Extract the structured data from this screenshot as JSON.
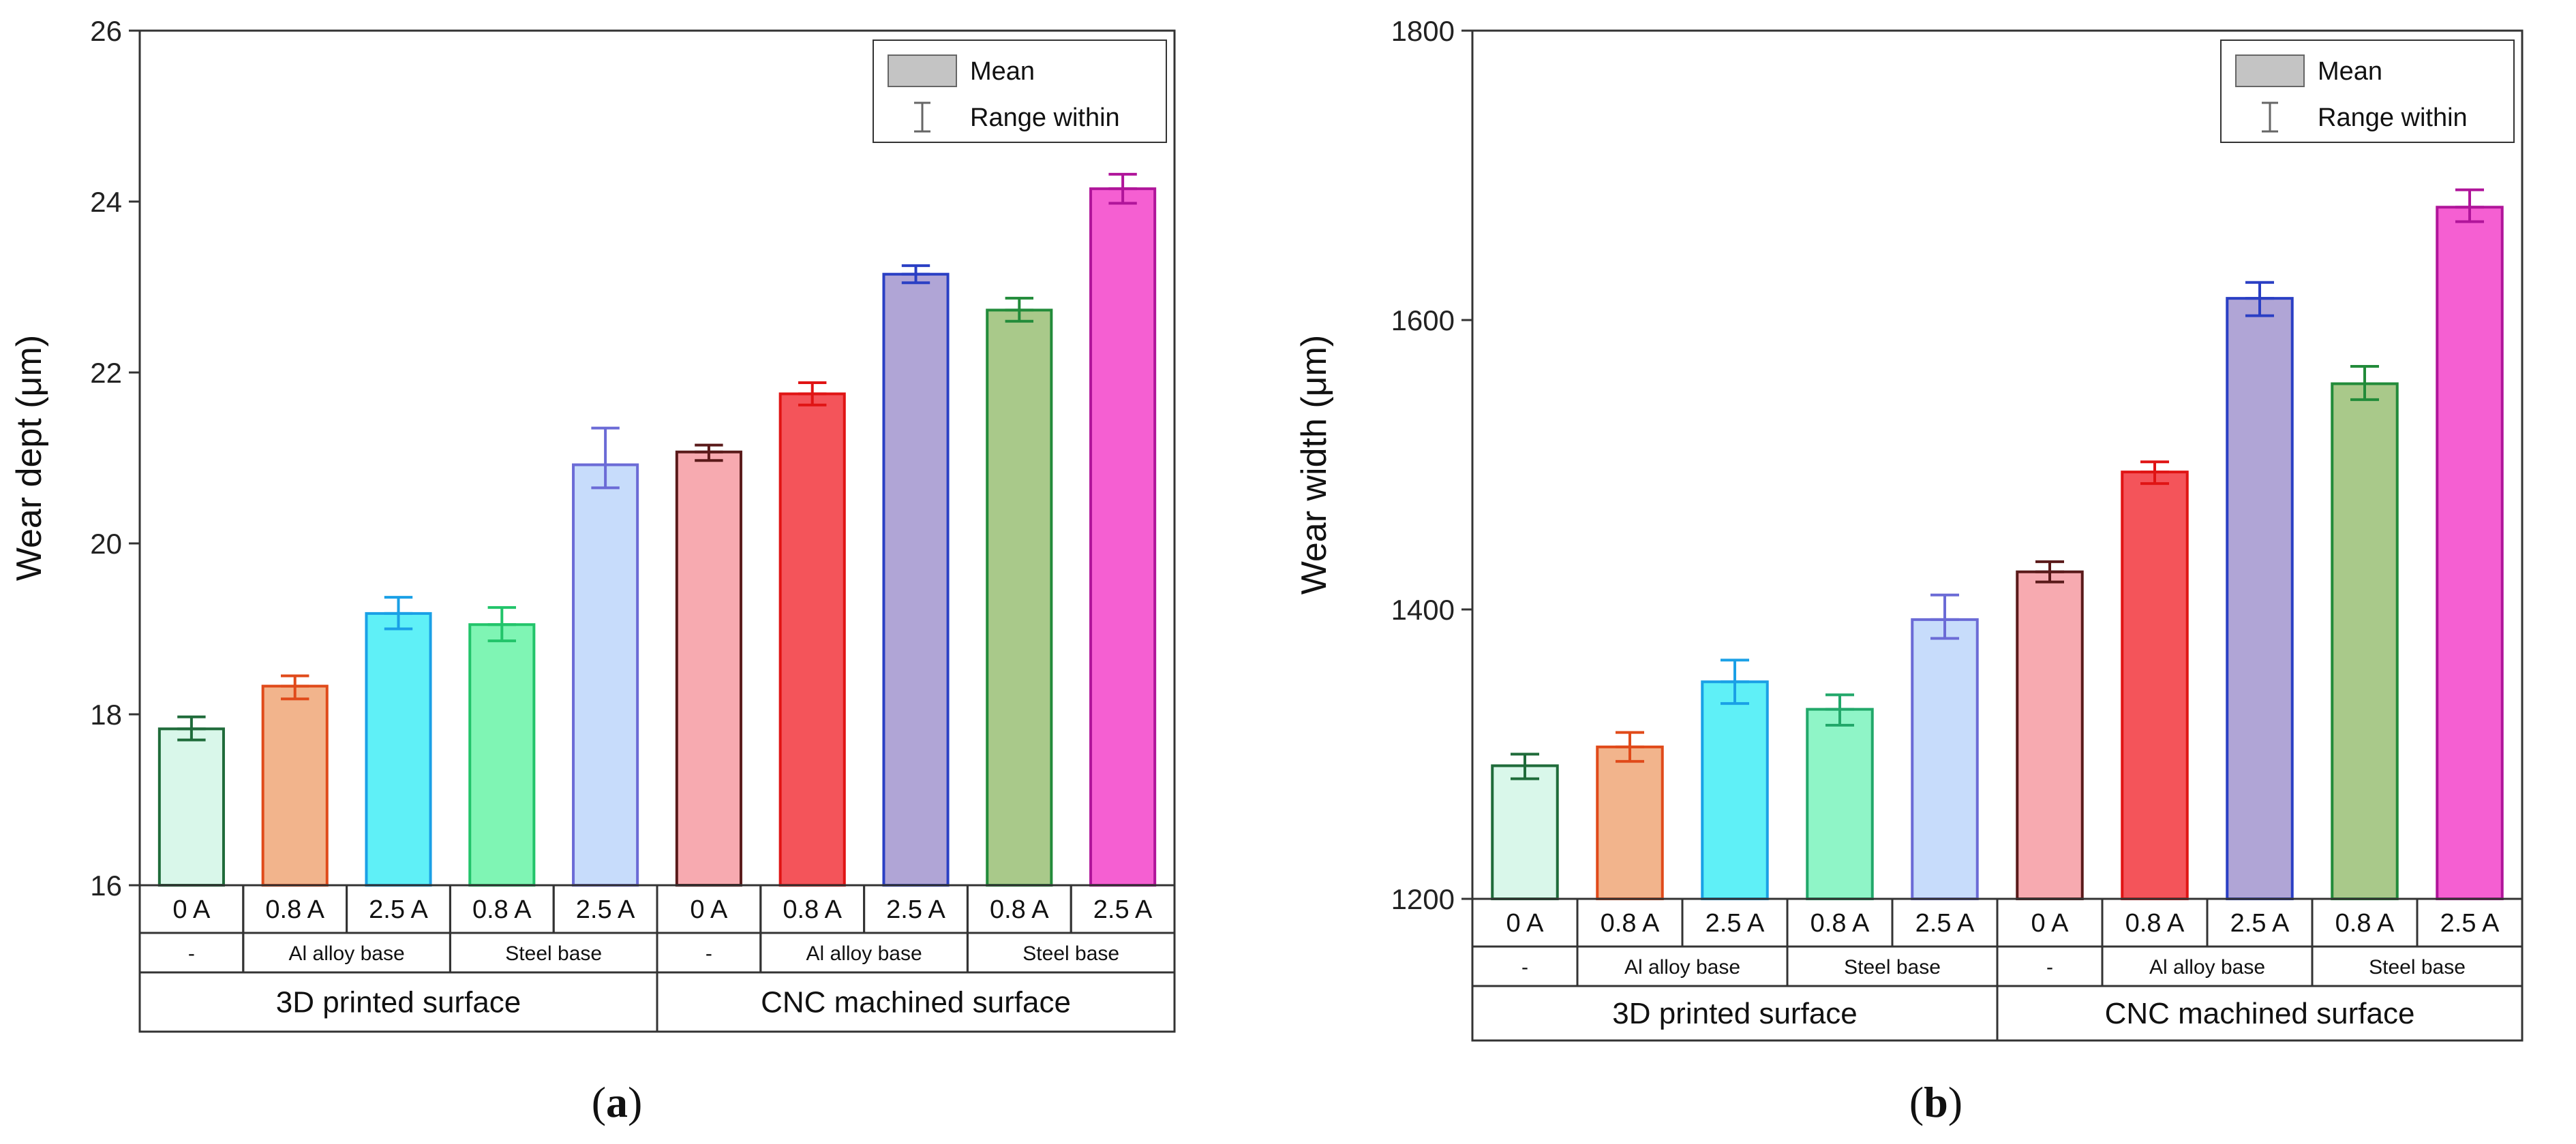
{
  "chart_data": [
    {
      "type": "bar",
      "caption": "(a)",
      "caption_letter": "a",
      "ylabel": "Wear dept (μm)",
      "ylim": [
        16,
        26
      ],
      "yticks": [
        "16",
        "18",
        "20",
        "22",
        "24",
        "26"
      ],
      "ytick_values": [
        16,
        18,
        20,
        22,
        24,
        26
      ],
      "legend": {
        "mean": "Mean",
        "range": "Range within",
        "placement": "top-right"
      },
      "groups": [
        {
          "surface": "3D printed surface",
          "bases": [
            "-",
            "Al alloy base",
            "Steel base"
          ],
          "bars": [
            {
              "current": "0 A",
              "base": "-",
              "value": 17.83,
              "err_low": 17.7,
              "err_high": 17.97,
              "fill": "#d9f7ea",
              "stroke": "#1f6b3a"
            },
            {
              "current": "0.8 A",
              "base": "Al alloy base",
              "value": 18.33,
              "err_low": 18.18,
              "err_high": 18.45,
              "fill": "#f2b48c",
              "stroke": "#e04a1a"
            },
            {
              "current": "2.5 A",
              "base": "Al alloy base",
              "value": 19.18,
              "err_low": 19.0,
              "err_high": 19.37,
              "fill": "#5ff0f7",
              "stroke": "#1aa0e6"
            },
            {
              "current": "0.8 A",
              "base": "Steel base",
              "value": 19.05,
              "err_low": 18.86,
              "err_high": 19.25,
              "fill": "#7ff5b4",
              "stroke": "#22c46a"
            },
            {
              "current": "2.5 A",
              "base": "Steel base",
              "value": 20.92,
              "err_low": 20.65,
              "err_high": 21.35,
              "fill": "#c7dcfb",
              "stroke": "#6b6bd6"
            }
          ]
        },
        {
          "surface": "CNC machined surface",
          "bases": [
            "-",
            "Al alloy base",
            "Steel base"
          ],
          "bars": [
            {
              "current": "0 A",
              "base": "-",
              "value": 21.07,
              "err_low": 20.97,
              "err_high": 21.15,
              "fill": "#f7aab0",
              "stroke": "#5a1a1a"
            },
            {
              "current": "0.8 A",
              "base": "Al alloy base",
              "value": 21.75,
              "err_low": 21.62,
              "err_high": 21.88,
              "fill": "#f4545a",
              "stroke": "#e01414"
            },
            {
              "current": "2.5 A",
              "base": "Al alloy base",
              "value": 23.15,
              "err_low": 23.05,
              "err_high": 23.25,
              "fill": "#b0a5d6",
              "stroke": "#2a3fc4"
            },
            {
              "current": "0.8 A",
              "base": "Steel base",
              "value": 22.73,
              "err_low": 22.6,
              "err_high": 22.87,
              "fill": "#a9c98a",
              "stroke": "#228b3a"
            },
            {
              "current": "2.5 A",
              "base": "Steel base",
              "value": 24.15,
              "err_low": 23.98,
              "err_high": 24.32,
              "fill": "#f55fd2",
              "stroke": "#b0159a"
            }
          ]
        }
      ]
    },
    {
      "type": "bar",
      "caption": "(b)",
      "caption_letter": "b",
      "ylabel": "Wear width (μm)",
      "ylim": [
        1200,
        1800
      ],
      "yticks": [
        "1200",
        "1400",
        "1600",
        "1800"
      ],
      "ytick_values": [
        1200,
        1400,
        1600,
        1800
      ],
      "legend": {
        "mean": "Mean",
        "range": "Range within",
        "placement": "top-right"
      },
      "groups": [
        {
          "surface": "3D printed surface",
          "bases": [
            "-",
            "Al alloy base",
            "Steel base"
          ],
          "bars": [
            {
              "current": "0 A",
              "base": "-",
              "value": 1292,
              "err_low": 1283,
              "err_high": 1300,
              "fill": "#d9f7ea",
              "stroke": "#1f6b3a"
            },
            {
              "current": "0.8 A",
              "base": "Al alloy base",
              "value": 1305,
              "err_low": 1295,
              "err_high": 1315,
              "fill": "#f2b48c",
              "stroke": "#e04a1a"
            },
            {
              "current": "2.5 A",
              "base": "Al alloy base",
              "value": 1350,
              "err_low": 1335,
              "err_high": 1365,
              "fill": "#5ff0f7",
              "stroke": "#1aa0e6"
            },
            {
              "current": "0.8 A",
              "base": "Steel base",
              "value": 1331,
              "err_low": 1320,
              "err_high": 1341,
              "fill": "#8ff5c7",
              "stroke": "#22a86a"
            },
            {
              "current": "2.5 A",
              "base": "Steel base",
              "value": 1393,
              "err_low": 1380,
              "err_high": 1410,
              "fill": "#c7dcfb",
              "stroke": "#6b6bd6"
            }
          ]
        },
        {
          "surface": "CNC machined surface",
          "bases": [
            "-",
            "Al alloy base",
            "Steel base"
          ],
          "bars": [
            {
              "current": "0 A",
              "base": "-",
              "value": 1426,
              "err_low": 1419,
              "err_high": 1433,
              "fill": "#f7aab0",
              "stroke": "#5a1a1a"
            },
            {
              "current": "0.8 A",
              "base": "Al alloy base",
              "value": 1495,
              "err_low": 1487,
              "err_high": 1502,
              "fill": "#f4545a",
              "stroke": "#e01414"
            },
            {
              "current": "2.5 A",
              "base": "Al alloy base",
              "value": 1615,
              "err_low": 1603,
              "err_high": 1626,
              "fill": "#b0a5d6",
              "stroke": "#2a3fc4"
            },
            {
              "current": "0.8 A",
              "base": "Steel base",
              "value": 1556,
              "err_low": 1545,
              "err_high": 1568,
              "fill": "#a9c98a",
              "stroke": "#228b3a"
            },
            {
              "current": "2.5 A",
              "base": "Steel base",
              "value": 1678,
              "err_low": 1668,
              "err_high": 1690,
              "fill": "#f55fd2",
              "stroke": "#b0159a"
            }
          ]
        }
      ]
    }
  ]
}
